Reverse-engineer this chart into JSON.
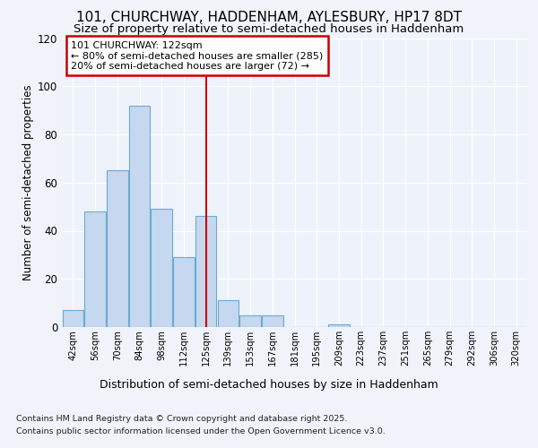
{
  "title1": "101, CHURCHWAY, HADDENHAM, AYLESBURY, HP17 8DT",
  "title2": "Size of property relative to semi-detached houses in Haddenham",
  "xlabel": "Distribution of semi-detached houses by size in Haddenham",
  "ylabel": "Number of semi-detached properties",
  "bins": [
    "42sqm",
    "56sqm",
    "70sqm",
    "84sqm",
    "98sqm",
    "112sqm",
    "125sqm",
    "139sqm",
    "153sqm",
    "167sqm",
    "181sqm",
    "195sqm",
    "209sqm",
    "223sqm",
    "237sqm",
    "251sqm",
    "265sqm",
    "279sqm",
    "292sqm",
    "306sqm",
    "320sqm"
  ],
  "values": [
    7,
    48,
    65,
    92,
    49,
    29,
    46,
    11,
    5,
    5,
    0,
    0,
    1,
    0,
    0,
    0,
    0,
    0,
    0,
    0,
    0
  ],
  "bar_color": "#c5d8ef",
  "bar_edge_color": "#6aaad4",
  "annotation_title": "101 CHURCHWAY: 122sqm",
  "annotation_line1": "← 80% of semi-detached houses are smaller (285)",
  "annotation_line2": "20% of semi-detached houses are larger (72) →",
  "vline_color": "#cc0000",
  "vline_x": 6.0,
  "ylim": [
    0,
    120
  ],
  "yticks": [
    0,
    20,
    40,
    60,
    80,
    100,
    120
  ],
  "footnote1": "Contains HM Land Registry data © Crown copyright and database right 2025.",
  "footnote2": "Contains public sector information licensed under the Open Government Licence v3.0.",
  "bg_color": "#f0f4fa",
  "plot_bg_color": "#eef2fa",
  "grid_color": "#ffffff",
  "annotation_box_color": "#ffffff",
  "annotation_box_edge": "#cc0000",
  "title_fontsize": 11,
  "subtitle_fontsize": 9.5
}
